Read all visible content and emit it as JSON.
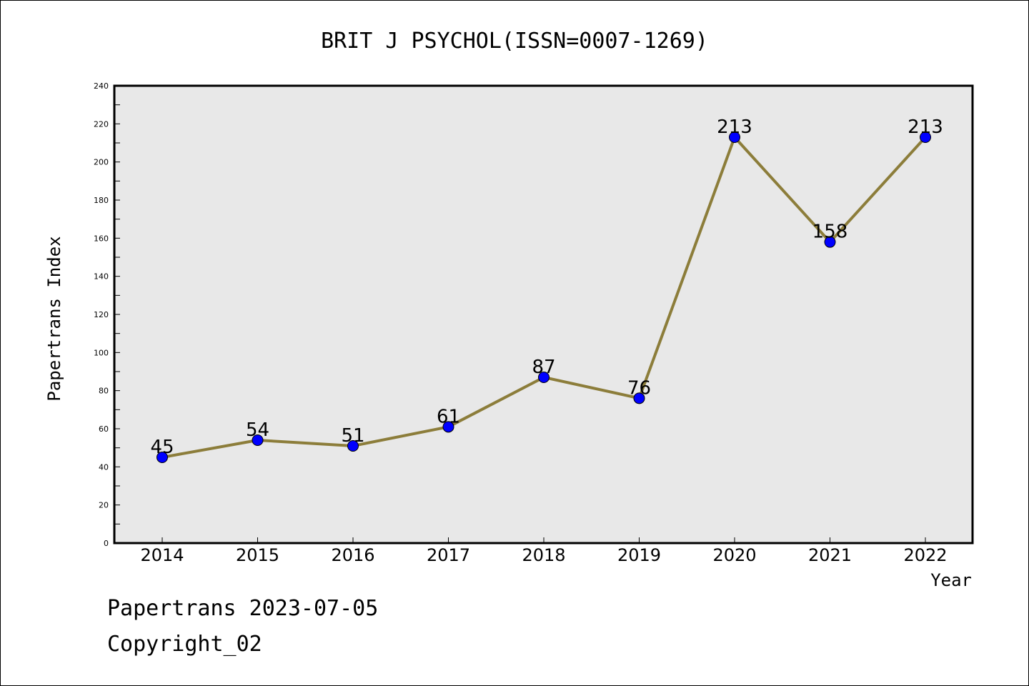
{
  "chart_data": {
    "type": "line",
    "title": "BRIT J PSYCHOL(ISSN=0007-1269)",
    "xlabel": "Year",
    "ylabel": "Papertrans Index",
    "categories": [
      "2014",
      "2015",
      "2016",
      "2017",
      "2018",
      "2019",
      "2020",
      "2021",
      "2022"
    ],
    "series": [
      {
        "values": [
          45,
          54,
          51,
          61,
          87,
          76,
          213,
          158,
          213
        ]
      }
    ],
    "ylim": [
      0,
      240
    ],
    "yticks": [
      0,
      20,
      40,
      60,
      80,
      100,
      120,
      140,
      160,
      180,
      200,
      220,
      240
    ],
    "grid": false,
    "colors": {
      "line": "#8c7d3a",
      "marker": "#0000ff",
      "plot_background": "#e8e8e8"
    }
  },
  "footer": {
    "line1": "Papertrans 2023-07-05",
    "line2": "Copyright_02"
  }
}
